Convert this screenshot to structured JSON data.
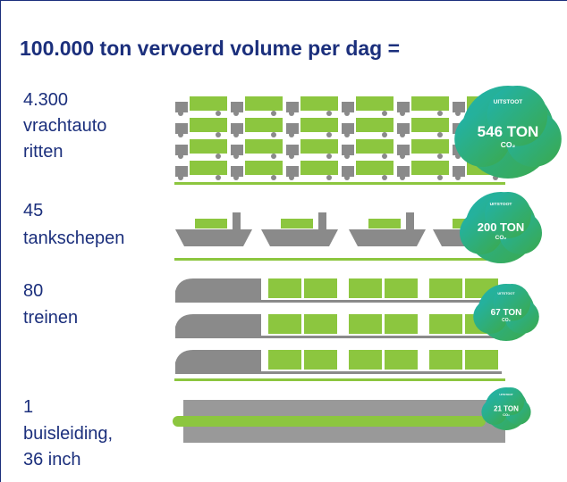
{
  "title": "100.000 ton vervoerd volume per dag =",
  "rows": [
    {
      "count": "4.300",
      "lines": [
        "vrachtauto",
        "ritten"
      ],
      "emission": {
        "label": "UITSTOOT",
        "amount": "546 TON",
        "unit": "CO₂"
      }
    },
    {
      "count": "45",
      "lines": [
        "tankschepen"
      ],
      "emission": {
        "label": "UITSTOOT",
        "amount": "200 TON",
        "unit": "CO₂"
      }
    },
    {
      "count": "80",
      "lines": [
        "treinen"
      ],
      "emission": {
        "label": "UITSTOOT",
        "amount": "67 TON",
        "unit": "CO₂"
      }
    },
    {
      "count": "1",
      "lines": [
        "buisleiding,",
        "36 inch"
      ],
      "emission": {
        "label": "UITSTOOT",
        "amount": "21 TON",
        "unit": "CO₂"
      }
    }
  ]
}
